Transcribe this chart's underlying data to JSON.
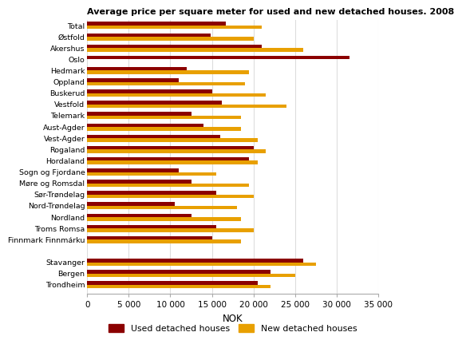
{
  "title": "Average price per square meter for used and new detached houses. 2008",
  "categories": [
    "Total",
    "Østfold",
    "Akershus",
    "Oslo",
    "Hedmark",
    "Oppland",
    "Buskerud",
    "Vestfold",
    "Telemark",
    "Aust-Agder",
    "Vest-Agder",
    "Rogaland",
    "Hordaland",
    "Sogn og Fjordane",
    "Møre og Romsdal",
    "Sør-Trøndelag",
    "Nord-Trøndelag",
    "Nordland",
    "Troms Romsa",
    "Finnmark Finnmárku",
    "",
    "Stavanger",
    "Bergen",
    "Trondheim"
  ],
  "used": [
    16700,
    14800,
    21000,
    31500,
    12000,
    11000,
    15000,
    16200,
    12500,
    14000,
    16000,
    20000,
    19500,
    11000,
    12500,
    15500,
    10500,
    12500,
    15500,
    15000,
    0,
    26000,
    22000,
    20500
  ],
  "new": [
    21000,
    20000,
    26000,
    0,
    19500,
    19000,
    21500,
    24000,
    18500,
    18500,
    20500,
    21500,
    20500,
    15500,
    19500,
    20000,
    18000,
    18500,
    20000,
    18500,
    0,
    27500,
    25000,
    22000
  ],
  "used_color": "#8B0000",
  "new_color": "#E8A000",
  "xlabel": "NOK",
  "xlim": [
    0,
    35000
  ],
  "xticks": [
    0,
    5000,
    10000,
    15000,
    20000,
    25000,
    30000,
    35000
  ],
  "xtick_labels": [
    "0",
    "5 000",
    "10 000",
    "15 000",
    "20 000",
    "25 000",
    "30 000",
    "35 000"
  ],
  "legend_used": "Used detached houses",
  "legend_new": "New detached houses",
  "bg_color": "#ffffff",
  "grid_color": "#dddddd"
}
